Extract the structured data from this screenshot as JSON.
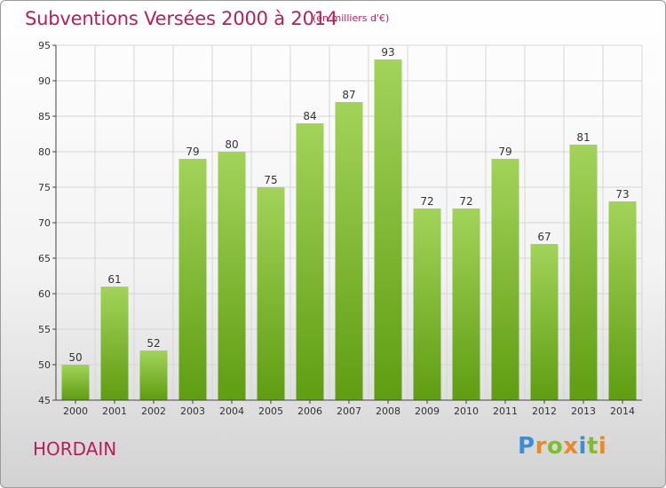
{
  "title": "Subventions Versées 2000 à 2014",
  "unit_note": "(en milliers d'€)",
  "commune": "HORDAIN",
  "logo": {
    "letters": [
      {
        "ch": "P",
        "color": "#3a8fd6"
      },
      {
        "ch": "r",
        "color": "#e8892a"
      },
      {
        "ch": "o",
        "color": "#7cbf2a"
      },
      {
        "ch": "x",
        "color": "#e8892a"
      },
      {
        "ch": "i",
        "color": "#3a8fd6"
      },
      {
        "ch": "t",
        "color": "#7cbf2a"
      },
      {
        "ch": "i",
        "color": "#e8892a"
      }
    ]
  },
  "chart_data": {
    "type": "bar",
    "categories": [
      "2000",
      "2001",
      "2002",
      "2003",
      "2004",
      "2005",
      "2006",
      "2007",
      "2008",
      "2009",
      "2010",
      "2011",
      "2012",
      "2013",
      "2014"
    ],
    "values": [
      50,
      61,
      52,
      79,
      80,
      75,
      84,
      87,
      93,
      72,
      72,
      79,
      67,
      81,
      73
    ],
    "ylim": [
      45,
      95
    ],
    "yticks": [
      45,
      50,
      55,
      60,
      65,
      70,
      75,
      80,
      85,
      90,
      95
    ],
    "grid": true,
    "bar_color_top": "#a3d35a",
    "bar_color_bottom": "#5f9d12",
    "grid_color": "#d6d6d6",
    "axis_color": "#444444"
  }
}
